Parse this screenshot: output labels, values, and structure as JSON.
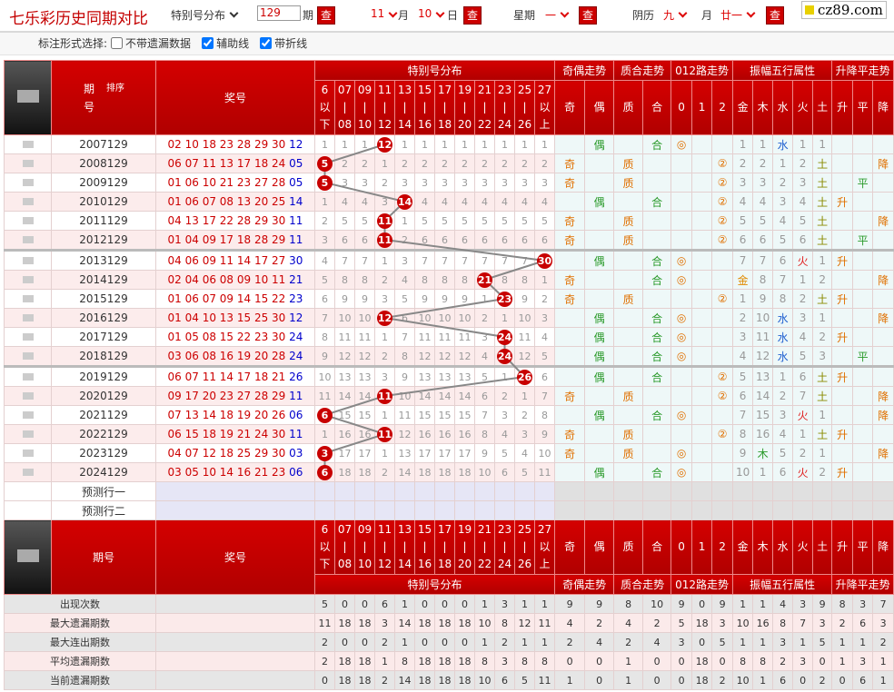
{
  "header": {
    "title": "七乐彩历史同期对比",
    "mode": "特别号分布",
    "issue": "129",
    "issue_unit": "期",
    "query": "查",
    "month": "11",
    "month_unit": "月",
    "day": "10",
    "day_unit": "日",
    "weekday_label": "星期",
    "weekday": "一",
    "lunar_label": "阴历",
    "lunar_month": "九",
    "lunar_month_unit": "月",
    "lunar_day": "廿一",
    "logo": "cz89.com"
  },
  "options": {
    "label": "标注形式选择:",
    "items": [
      {
        "text": "不带遗漏数据",
        "checked": false
      },
      {
        "text": "辅助线",
        "checked": true
      },
      {
        "text": "带折线",
        "checked": true
      }
    ]
  },
  "table": {
    "issue_header": "期号",
    "sort": "排序",
    "numbers_header": "奖号",
    "groups": [
      {
        "name": "特别号分布",
        "columns": [
          [
            "6",
            "以",
            "下"
          ],
          [
            "07",
            "|",
            "08"
          ],
          [
            "09",
            "|",
            "10"
          ],
          [
            "11",
            "|",
            "12"
          ],
          [
            "13",
            "|",
            "14"
          ],
          [
            "15",
            "|",
            "16"
          ],
          [
            "17",
            "|",
            "18"
          ],
          [
            "19",
            "|",
            "20"
          ],
          [
            "21",
            "|",
            "22"
          ],
          [
            "23",
            "|",
            "24"
          ],
          [
            "25",
            "|",
            "26"
          ],
          [
            "27",
            "以",
            "上"
          ]
        ]
      },
      {
        "name": "奇偶走势",
        "columns": [
          "奇",
          "偶"
        ]
      },
      {
        "name": "质合走势",
        "columns": [
          "质",
          "合"
        ]
      },
      {
        "name": "012路走势",
        "columns": [
          "0",
          "1",
          "2"
        ]
      },
      {
        "name": "振幅五行属性",
        "columns": [
          "金",
          "木",
          "水",
          "火",
          "土"
        ]
      },
      {
        "name": "升降平走势",
        "columns": [
          "升",
          "平",
          "降"
        ]
      }
    ],
    "rows": [
      {
        "issue": "2007129",
        "numbers": "02 10 18 23 28 29 30",
        "special": "12",
        "cells": [
          "1",
          "1",
          "1",
          {
            "ball": "12"
          },
          "1",
          "1",
          "1",
          "1",
          "1",
          "1",
          "1",
          "1",
          null,
          "偶",
          null,
          "合",
          "◎",
          null,
          null,
          "1",
          "1",
          "水",
          "1",
          "1",
          null,
          null,
          null
        ]
      },
      {
        "issue": "2008129",
        "numbers": "06 07 11 13 17 18 24",
        "special": "05",
        "cells": [
          {
            "ball": "5"
          },
          "2",
          "2",
          "1",
          "2",
          "2",
          "2",
          "2",
          "2",
          "2",
          "2",
          "2",
          "奇",
          null,
          "质",
          null,
          null,
          null,
          "②",
          "2",
          "2",
          "1",
          "2",
          "土",
          null,
          null,
          "降"
        ]
      },
      {
        "issue": "2009129",
        "numbers": "01 06 10 21 23 27 28",
        "special": "05",
        "cells": [
          {
            "ball": "5"
          },
          "3",
          "3",
          "2",
          "3",
          "3",
          "3",
          "3",
          "3",
          "3",
          "3",
          "3",
          "奇",
          null,
          "质",
          null,
          null,
          null,
          "②",
          "3",
          "3",
          "2",
          "3",
          "土",
          null,
          "平",
          null
        ]
      },
      {
        "issue": "2010129",
        "numbers": "01 06 07 08 13 20 25",
        "special": "14",
        "cells": [
          "1",
          "4",
          "4",
          "3",
          {
            "ball": "14"
          },
          "4",
          "4",
          "4",
          "4",
          "4",
          "4",
          "4",
          null,
          "偶",
          null,
          "合",
          null,
          null,
          "②",
          "4",
          "4",
          "3",
          "4",
          "土",
          "升",
          null,
          null
        ]
      },
      {
        "issue": "2011129",
        "numbers": "04 13 17 22 28 29 30",
        "special": "11",
        "cells": [
          "2",
          "5",
          "5",
          {
            "ball": "11"
          },
          "1",
          "5",
          "5",
          "5",
          "5",
          "5",
          "5",
          "5",
          "奇",
          null,
          "质",
          null,
          null,
          null,
          "②",
          "5",
          "5",
          "4",
          "5",
          "土",
          null,
          null,
          "降"
        ]
      },
      {
        "issue": "2012129",
        "numbers": "01 04 09 17 18 28 29",
        "special": "11",
        "cells": [
          "3",
          "6",
          "6",
          {
            "ball": "11"
          },
          "2",
          "6",
          "6",
          "6",
          "6",
          "6",
          "6",
          "6",
          "奇",
          null,
          "质",
          null,
          null,
          null,
          "②",
          "6",
          "6",
          "5",
          "6",
          "土",
          null,
          "平",
          null
        ]
      },
      {
        "issue": "2013129",
        "numbers": "04 06 09 11 14 17 27",
        "special": "30",
        "cells": [
          "4",
          "7",
          "7",
          "1",
          "3",
          "7",
          "7",
          "7",
          "7",
          "7",
          "7",
          {
            "ball": "30"
          },
          null,
          "偶",
          null,
          "合",
          "◎",
          null,
          null,
          "7",
          "7",
          "6",
          "火",
          "1",
          "升",
          null,
          null
        ]
      },
      {
        "issue": "2014129",
        "numbers": "02 04 06 08 09 10 11",
        "special": "21",
        "cells": [
          "5",
          "8",
          "8",
          "2",
          "4",
          "8",
          "8",
          "8",
          {
            "ball": "21"
          },
          "8",
          "8",
          "1",
          "奇",
          null,
          null,
          "合",
          "◎",
          null,
          null,
          "金",
          "8",
          "7",
          "1",
          "2",
          null,
          null,
          "降"
        ]
      },
      {
        "issue": "2015129",
        "numbers": "01 06 07 09 14 15 22",
        "special": "23",
        "cells": [
          "6",
          "9",
          "9",
          "3",
          "5",
          "9",
          "9",
          "9",
          "1",
          {
            "ball": "23"
          },
          "9",
          "2",
          "奇",
          null,
          "质",
          null,
          null,
          null,
          "②",
          "1",
          "9",
          "8",
          "2",
          "土",
          "升",
          null,
          null
        ]
      },
      {
        "issue": "2016129",
        "numbers": "01 04 10 13 15 25 30",
        "special": "12",
        "cells": [
          "7",
          "10",
          "10",
          {
            "ball": "12"
          },
          "6",
          "10",
          "10",
          "10",
          "2",
          "1",
          "10",
          "3",
          null,
          "偶",
          null,
          "合",
          "◎",
          null,
          null,
          "2",
          "10",
          "水",
          "3",
          "1",
          null,
          null,
          "降"
        ]
      },
      {
        "issue": "2017129",
        "numbers": "01 05 08 15 22 23 30",
        "special": "24",
        "cells": [
          "8",
          "11",
          "11",
          "1",
          "7",
          "11",
          "11",
          "11",
          "3",
          {
            "ball": "24"
          },
          "11",
          "4",
          null,
          "偶",
          null,
          "合",
          "◎",
          null,
          null,
          "3",
          "11",
          "水",
          "4",
          "2",
          "升",
          null,
          null
        ]
      },
      {
        "issue": "2018129",
        "numbers": "03 06 08 16 19 20 28",
        "special": "24",
        "cells": [
          "9",
          "12",
          "12",
          "2",
          "8",
          "12",
          "12",
          "12",
          "4",
          {
            "ball": "24"
          },
          "12",
          "5",
          null,
          "偶",
          null,
          "合",
          "◎",
          null,
          null,
          "4",
          "12",
          "水",
          "5",
          "3",
          null,
          "平",
          null
        ]
      },
      {
        "issue": "2019129",
        "numbers": "06 07 11 14 17 18 21",
        "special": "26",
        "cells": [
          "10",
          "13",
          "13",
          "3",
          "9",
          "13",
          "13",
          "13",
          "5",
          "1",
          {
            "ball": "26"
          },
          "6",
          null,
          "偶",
          null,
          "合",
          null,
          null,
          "②",
          "5",
          "13",
          "1",
          "6",
          "土",
          "升",
          null,
          null
        ]
      },
      {
        "issue": "2020129",
        "numbers": "09 17 20 23 27 28 29",
        "special": "11",
        "cells": [
          "11",
          "14",
          "14",
          {
            "ball": "11"
          },
          "10",
          "14",
          "14",
          "14",
          "6",
          "2",
          "1",
          "7",
          "奇",
          null,
          "质",
          null,
          null,
          null,
          "②",
          "6",
          "14",
          "2",
          "7",
          "土",
          null,
          null,
          "降"
        ]
      },
      {
        "issue": "2021129",
        "numbers": "07 13 14 18 19 20 26",
        "special": "06",
        "cells": [
          {
            "ball": "6"
          },
          "15",
          "15",
          "1",
          "11",
          "15",
          "15",
          "15",
          "7",
          "3",
          "2",
          "8",
          null,
          "偶",
          null,
          "合",
          "◎",
          null,
          null,
          "7",
          "15",
          "3",
          "火",
          "1",
          null,
          null,
          "降"
        ]
      },
      {
        "issue": "2022129",
        "numbers": "06 15 18 19 21 24 30",
        "special": "11",
        "cells": [
          "1",
          "16",
          "16",
          {
            "ball": "11"
          },
          "12",
          "16",
          "16",
          "16",
          "8",
          "4",
          "3",
          "9",
          "奇",
          null,
          "质",
          null,
          null,
          null,
          "②",
          "8",
          "16",
          "4",
          "1",
          "土",
          "升",
          null,
          null
        ]
      },
      {
        "issue": "2023129",
        "numbers": "04 07 12 18 25 29 30",
        "special": "03",
        "cells": [
          {
            "ball": "3"
          },
          "17",
          "17",
          "1",
          "13",
          "17",
          "17",
          "17",
          "9",
          "5",
          "4",
          "10",
          "奇",
          null,
          "质",
          null,
          "◎",
          null,
          null,
          "9",
          "木",
          "5",
          "2",
          "1",
          null,
          null,
          "降"
        ]
      },
      {
        "issue": "2024129",
        "numbers": "03 05 10 14 16 21 23",
        "special": "06",
        "cells": [
          {
            "ball": "6"
          },
          "18",
          "18",
          "2",
          "14",
          "18",
          "18",
          "18",
          "10",
          "6",
          "5",
          "11",
          null,
          "偶",
          null,
          "合",
          "◎",
          null,
          null,
          "10",
          "1",
          "6",
          "火",
          "2",
          "升",
          null,
          null
        ]
      }
    ],
    "predict_rows": [
      "预测行一",
      "预测行二"
    ],
    "stats": [
      {
        "label": "出现次数",
        "values": [
          5,
          0,
          0,
          6,
          1,
          0,
          0,
          0,
          1,
          3,
          1,
          1,
          9,
          9,
          8,
          10,
          9,
          0,
          9,
          1,
          1,
          4,
          3,
          9,
          8,
          3,
          7
        ]
      },
      {
        "label": "最大遗漏期数",
        "values": [
          11,
          18,
          18,
          3,
          14,
          18,
          18,
          18,
          10,
          8,
          12,
          11,
          4,
          2,
          4,
          2,
          5,
          18,
          3,
          10,
          16,
          8,
          7,
          3,
          2,
          6,
          3
        ]
      },
      {
        "label": "最大连出期数",
        "values": [
          2,
          0,
          0,
          2,
          1,
          0,
          0,
          0,
          1,
          2,
          1,
          1,
          2,
          4,
          2,
          4,
          3,
          0,
          5,
          1,
          1,
          3,
          1,
          5,
          1,
          1,
          2
        ]
      },
      {
        "label": "平均遗漏期数",
        "values": [
          2,
          18,
          18,
          1,
          8,
          18,
          18,
          18,
          8,
          3,
          8,
          8,
          0,
          0,
          1,
          0,
          0,
          18,
          0,
          8,
          8,
          2,
          3,
          0,
          1,
          3,
          1
        ]
      },
      {
        "label": "当前遗漏期数",
        "values": [
          0,
          18,
          18,
          2,
          14,
          18,
          18,
          18,
          10,
          6,
          5,
          11,
          1,
          0,
          1,
          0,
          0,
          18,
          2,
          10,
          1,
          6,
          0,
          2,
          0,
          6,
          1
        ]
      }
    ]
  }
}
